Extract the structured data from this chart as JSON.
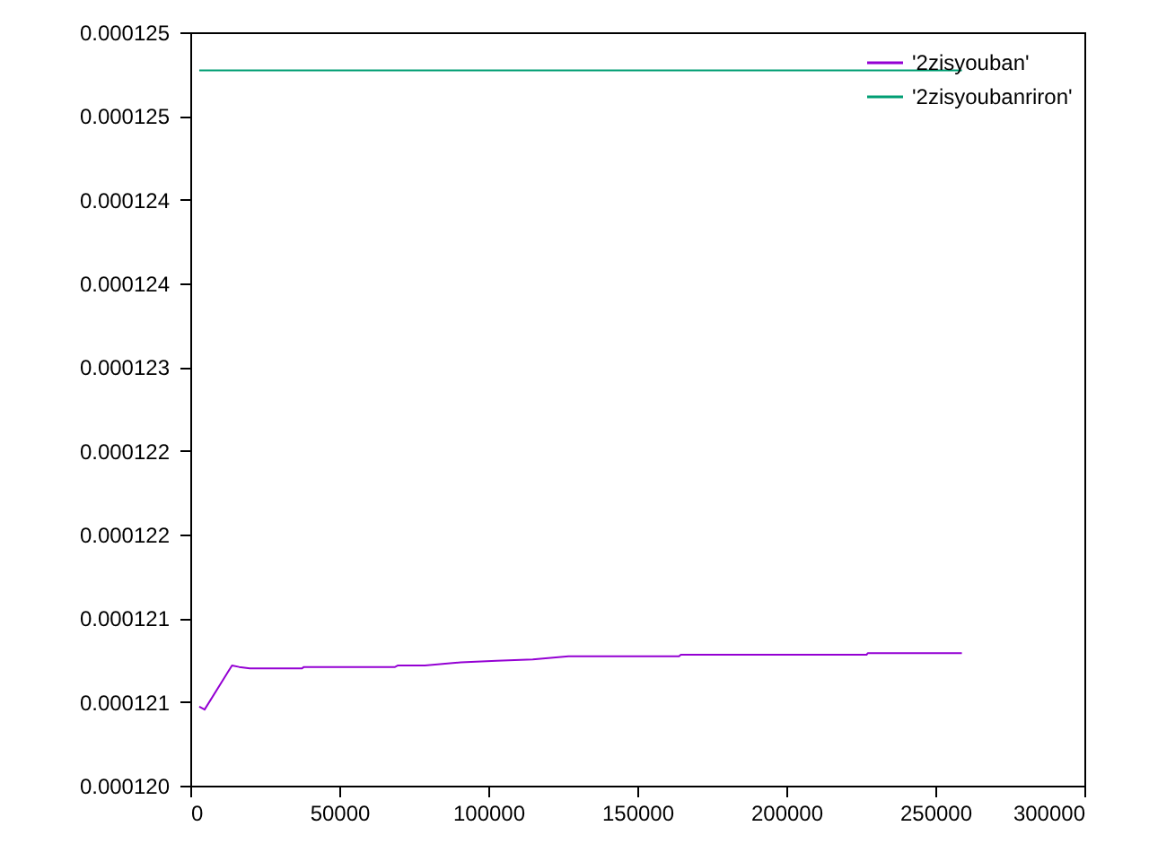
{
  "chart_data": {
    "type": "line",
    "series": [
      {
        "name": "'2zisyouban'",
        "color": "#9400d3",
        "x": [
          3000,
          4800,
          14000,
          16400,
          20000,
          37500,
          38100,
          68700,
          69700,
          78700,
          90800,
          102800,
          114900,
          126900,
          164000,
          164600,
          226900,
          227300,
          258900
        ],
        "values": [
          0.00012077,
          0.00012075,
          0.00012104,
          0.00012103,
          0.00012102,
          0.00012102,
          0.00012103,
          0.00012103,
          0.00012104,
          0.00012104,
          0.00012106,
          0.00012107,
          0.00012108,
          0.0001211,
          0.0001211,
          0.00012111,
          0.00012111,
          0.00012112,
          0.00012112
        ]
      },
      {
        "name": "'2zisyoubanriron'",
        "color": "#009e73",
        "x": [
          3000,
          258900
        ],
        "values": [
          0.00012495,
          0.00012495
        ]
      }
    ],
    "xlim": [
      0,
      300000
    ],
    "xticks": [
      0,
      50000,
      100000,
      150000,
      200000,
      250000,
      300000
    ],
    "ylim": [
      0.00012025,
      0.0001252
    ],
    "yticks": [
      {
        "value": 0.00012025,
        "label": "0.000120"
      },
      {
        "value": 0.0001208,
        "label": "0.000121"
      },
      {
        "value": 0.00012135,
        "label": "0.000121"
      },
      {
        "value": 0.0001219,
        "label": "0.000122"
      },
      {
        "value": 0.00012245,
        "label": "0.000122"
      },
      {
        "value": 0.000123,
        "label": "0.000123"
      },
      {
        "value": 0.00012355,
        "label": "0.000124"
      },
      {
        "value": 0.0001241,
        "label": "0.000124"
      },
      {
        "value": 0.00012465,
        "label": "0.000125"
      },
      {
        "value": 0.0001252,
        "label": "0.000125"
      }
    ],
    "legend": "top right",
    "grid": false
  }
}
